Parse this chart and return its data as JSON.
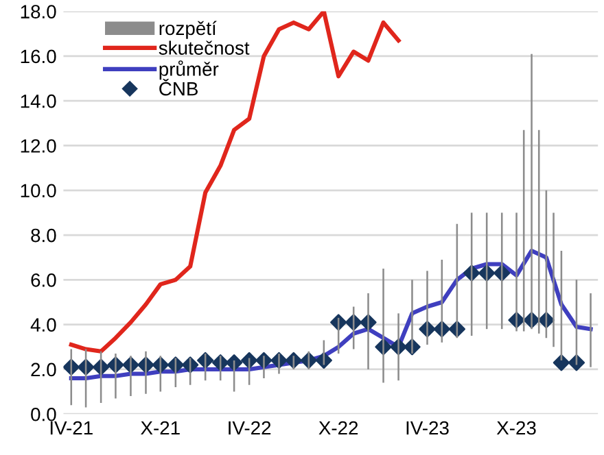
{
  "chart_data": {
    "type": "line",
    "xlim": [
      "2021-03-16",
      "2024-03-16"
    ],
    "xticks": [
      {
        "value": "2021-04",
        "label": "IV-21"
      },
      {
        "value": "2021-10",
        "label": "X-21"
      },
      {
        "value": "2022-04",
        "label": "IV-22"
      },
      {
        "value": "2022-10",
        "label": "X-22"
      },
      {
        "value": "2023-04",
        "label": "IV-23"
      },
      {
        "value": "2023-10",
        "label": "X-23"
      }
    ],
    "ylim": [
      0,
      18
    ],
    "yticks": [
      {
        "value": 0,
        "label": "0.0"
      },
      {
        "value": 2,
        "label": "2.0"
      },
      {
        "value": 4,
        "label": "4.0"
      },
      {
        "value": 6,
        "label": "6.0"
      },
      {
        "value": 8,
        "label": "8.0"
      },
      {
        "value": 10,
        "label": "10.0"
      },
      {
        "value": 12,
        "label": "12.0"
      },
      {
        "value": 14,
        "label": "14.0"
      },
      {
        "value": 16,
        "label": "16.0"
      },
      {
        "value": 18,
        "label": "18.0"
      }
    ],
    "grid": "y",
    "legend": "top left",
    "series": [
      {
        "name": "rozpětí",
        "type": "bar",
        "color": "#8c8c8c",
        "x": [
          "2021-04-01",
          "2021-05-01",
          "2021-06-01",
          "2021-07-01",
          "2021-08-01",
          "2021-09-01",
          "2021-10-01",
          "2021-11-01",
          "2021-12-01",
          "2022-01-01",
          "2022-02-01",
          "2022-03-01",
          "2022-04-01",
          "2022-05-01",
          "2022-06-01",
          "2022-07-01",
          "2022-08-01",
          "2022-09-01",
          "2022-10-01",
          "2022-11-01",
          "2022-12-01",
          "2023-01-01",
          "2023-02-01",
          "2023-03-01",
          "2023-04-01",
          "2023-05-01",
          "2023-06-01",
          "2023-07-01",
          "2023-08-01",
          "2023-09-01",
          "2023-10-01",
          "2023-10-16",
          "2023-11-01",
          "2023-11-16",
          "2023-12-01",
          "2023-12-16",
          "2024-01-01",
          "2024-02-01",
          "2024-03-01"
        ],
        "base": [
          0.4,
          0.3,
          0.5,
          0.7,
          0.8,
          0.9,
          1.0,
          1.2,
          1.3,
          1.5,
          1.5,
          1.0,
          1.3,
          1.6,
          1.8,
          2.0,
          2.0,
          2.2,
          2.7,
          2.9,
          2.0,
          1.4,
          1.5,
          2.7,
          3.1,
          3.2,
          3.4,
          3.5,
          3.8,
          3.8,
          3.7,
          3.7,
          3.8,
          3.6,
          3.4,
          3.0,
          2.4,
          2.2,
          2.1
        ],
        "values": [
          2.5,
          2.6,
          2.3,
          2.0,
          1.8,
          1.9,
          1.6,
          1.3,
          1.2,
          1.2,
          1.1,
          1.4,
          1.2,
          1.0,
          0.9,
          0.6,
          0.8,
          1.1,
          1.6,
          1.9,
          3.4,
          5.1,
          3.0,
          3.3,
          3.3,
          3.7,
          5.1,
          5.5,
          5.2,
          5.2,
          5.3,
          9.0,
          12.3,
          9.1,
          6.6,
          6.0,
          4.9,
          3.8,
          3.3
        ]
      },
      {
        "name": "skutečnost",
        "color": "#e0261c",
        "x": [
          "2021-04",
          "2021-05",
          "2021-06",
          "2021-07",
          "2021-08",
          "2021-09",
          "2021-10",
          "2021-11",
          "2021-12",
          "2022-01",
          "2022-02",
          "2022-03",
          "2022-04",
          "2022-05",
          "2022-06",
          "2022-07",
          "2022-08",
          "2022-09",
          "2022-10",
          "2022-11",
          "2022-12",
          "2023-01",
          "2023-02"
        ],
        "values": [
          3.1,
          2.9,
          2.8,
          3.4,
          4.1,
          4.9,
          5.8,
          6.0,
          6.6,
          9.9,
          11.1,
          12.7,
          13.2,
          16.0,
          17.2,
          17.5,
          17.2,
          18.0,
          15.1,
          16.2,
          15.8,
          17.5,
          16.7
        ]
      },
      {
        "name": "průměr",
        "color": "#3f3fbf",
        "x": [
          "2021-04",
          "2021-05",
          "2021-06",
          "2021-07",
          "2021-08",
          "2021-09",
          "2021-10",
          "2021-11",
          "2021-12",
          "2022-01",
          "2022-02",
          "2022-03",
          "2022-04",
          "2022-05",
          "2022-06",
          "2022-07",
          "2022-08",
          "2022-09",
          "2022-10",
          "2022-11",
          "2022-12",
          "2023-01",
          "2023-02",
          "2023-03",
          "2023-04",
          "2023-05",
          "2023-06",
          "2023-07",
          "2023-08",
          "2023-09",
          "2023-10",
          "2023-11",
          "2023-12",
          "2024-01",
          "2024-02",
          "2024-03"
        ],
        "values": [
          1.6,
          1.6,
          1.7,
          1.7,
          1.8,
          1.8,
          1.9,
          1.9,
          2.0,
          2.0,
          2.0,
          2.0,
          2.0,
          2.1,
          2.2,
          2.3,
          2.4,
          2.6,
          3.0,
          3.6,
          3.8,
          3.4,
          3.0,
          4.5,
          4.8,
          5.0,
          6.0,
          6.5,
          6.7,
          6.7,
          6.2,
          7.3,
          7.0,
          4.9,
          3.9,
          3.8
        ]
      },
      {
        "name": "ČNB",
        "type": "scatter",
        "marker": "diamond",
        "color": "#17365d",
        "x": [
          "2021-04",
          "2021-05",
          "2021-06",
          "2021-07",
          "2021-08",
          "2021-09",
          "2021-10",
          "2021-11",
          "2021-12",
          "2022-01",
          "2022-02",
          "2022-03",
          "2022-04",
          "2022-05",
          "2022-06",
          "2022-07",
          "2022-08",
          "2022-09",
          "2022-10",
          "2022-11",
          "2022-12",
          "2023-01",
          "2023-02",
          "2023-03",
          "2023-04",
          "2023-05",
          "2023-06",
          "2023-07",
          "2023-08",
          "2023-09",
          "2023-10",
          "2023-11",
          "2023-12",
          "2024-01",
          "2024-02"
        ],
        "values": [
          2.1,
          2.1,
          2.1,
          2.2,
          2.2,
          2.2,
          2.2,
          2.2,
          2.2,
          2.4,
          2.3,
          2.3,
          2.4,
          2.4,
          2.4,
          2.4,
          2.4,
          2.4,
          4.1,
          4.1,
          4.1,
          3.0,
          3.0,
          3.0,
          3.8,
          3.8,
          3.8,
          6.3,
          6.3,
          6.3,
          4.2,
          4.2,
          4.2,
          2.3,
          2.3
        ]
      }
    ]
  }
}
